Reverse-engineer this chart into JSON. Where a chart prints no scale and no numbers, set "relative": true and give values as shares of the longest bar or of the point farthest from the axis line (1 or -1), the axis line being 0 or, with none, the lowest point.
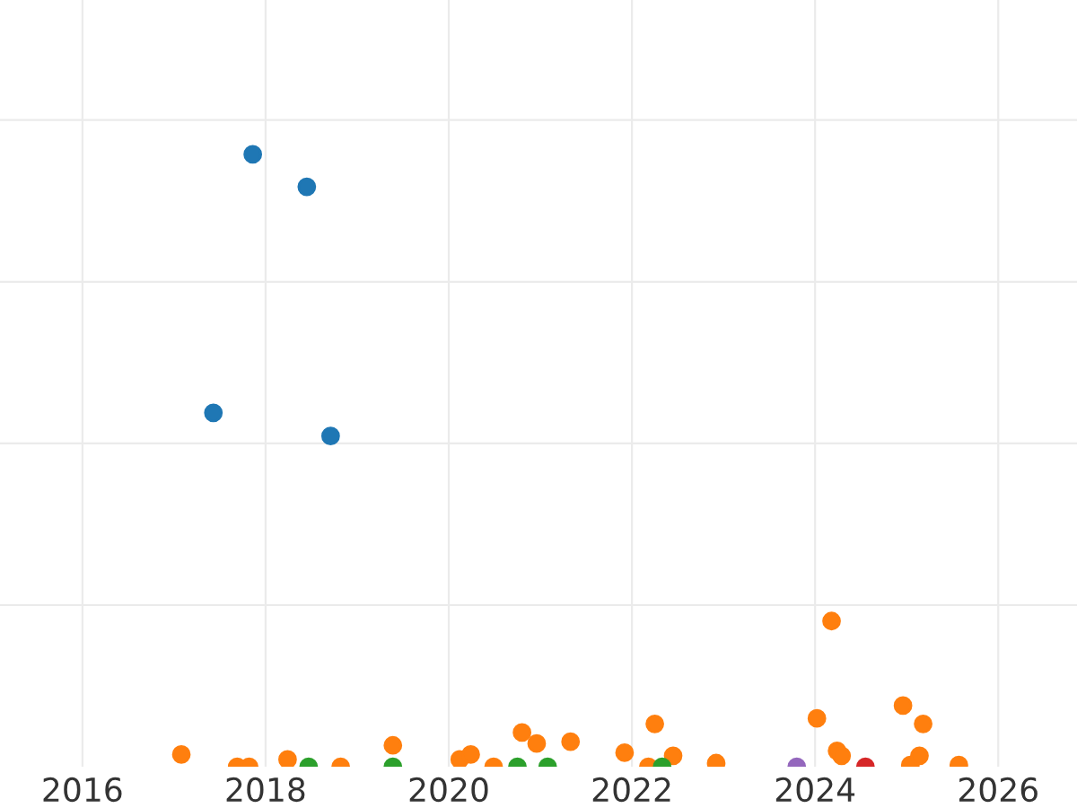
{
  "chart_data": {
    "type": "scatter",
    "relative": true,
    "grid": true,
    "marker": "circle",
    "xlim": [
      2015.1,
      2026.86
    ],
    "xticks": [
      2016,
      2018,
      2020,
      2022,
      2024,
      2026
    ],
    "series": [
      {
        "color": "#1f77b4",
        "x": [
          2017.86,
          2018.45,
          2017.43,
          2018.71
        ],
        "values": [
          1.0,
          0.947,
          0.578,
          0.54
        ]
      },
      {
        "color": "#ff7f0e",
        "x": [
          2017.08,
          2017.69,
          2017.82,
          2018.24,
          2018.82,
          2019.39,
          2020.12,
          2020.24,
          2020.49,
          2020.8,
          2020.96,
          2021.33,
          2021.92,
          2022.18,
          2022.25,
          2022.45,
          2022.92,
          2024.02,
          2024.18,
          2024.24,
          2024.29,
          2024.96,
          2025.18,
          2025.04,
          2025.14,
          2025.57
        ],
        "values": [
          0.02,
          0,
          0,
          0.012,
          0,
          0.035,
          0.012,
          0.02,
          0,
          0.056,
          0.038,
          0.041,
          0.023,
          0,
          0.07,
          0.018,
          0.006,
          0.079,
          0.238,
          0.026,
          0.018,
          0.1,
          0.07,
          0.003,
          0.018,
          0.003
        ]
      },
      {
        "color": "#2ca02c",
        "x": [
          2018.47,
          2019.39,
          2020.75,
          2021.08,
          2022.33
        ],
        "values": [
          0,
          0,
          0,
          0,
          0
        ]
      },
      {
        "color": "#9467bd",
        "x": [
          2023.8
        ],
        "values": [
          0
        ]
      },
      {
        "color": "#d62728",
        "x": [
          2024.55
        ],
        "values": [
          0
        ]
      }
    ]
  }
}
